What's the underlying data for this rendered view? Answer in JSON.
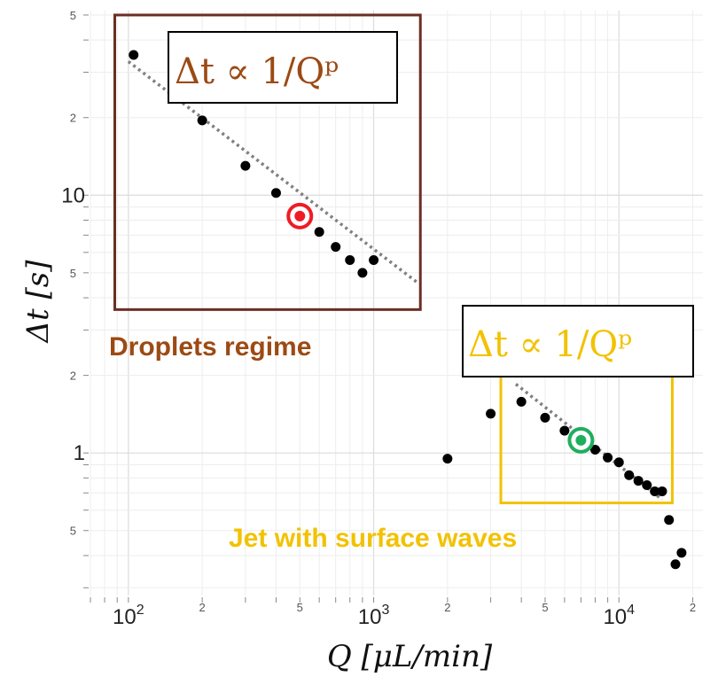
{
  "chart_data": {
    "type": "scatter",
    "xlabel": "Q [μL/min]",
    "ylabel": "Δt [s]",
    "x_scale": "log",
    "y_scale": "log",
    "xlim": [
      70,
      22000
    ],
    "ylim": [
      0.28,
      52
    ],
    "grid": true,
    "x_major_ticks": [
      {
        "value": 100,
        "base": "10",
        "exp": "2"
      },
      {
        "value": 1000,
        "base": "10",
        "exp": "3"
      },
      {
        "value": 10000,
        "base": "10",
        "exp": "4"
      }
    ],
    "x_minor_labels": [
      {
        "value": 200,
        "label": "2"
      },
      {
        "value": 500,
        "label": "5"
      },
      {
        "value": 2000,
        "label": "2"
      },
      {
        "value": 5000,
        "label": "5"
      },
      {
        "value": 20000,
        "label": "2"
      }
    ],
    "y_major_ticks": [
      {
        "value": 1,
        "label": "1"
      },
      {
        "value": 10,
        "label": "10"
      }
    ],
    "y_minor_labels": [
      {
        "value": 0.5,
        "label": "5"
      },
      {
        "value": 2,
        "label": "2"
      },
      {
        "value": 5,
        "label": "5"
      },
      {
        "value": 20,
        "label": "2"
      },
      {
        "value": 50,
        "label": "5"
      }
    ],
    "series": [
      {
        "x": [
          105,
          200,
          300,
          400,
          600,
          700,
          800,
          900,
          1000,
          2000,
          3000,
          4000,
          5000,
          6000,
          8000,
          9000,
          10000,
          11000,
          12000,
          13000,
          14000,
          15000,
          16000,
          17000,
          18000
        ],
        "y": [
          35,
          19.5,
          13,
          10.2,
          7.2,
          6.3,
          5.6,
          5.0,
          5.6,
          0.95,
          1.42,
          1.58,
          1.37,
          1.22,
          1.03,
          0.96,
          0.92,
          0.82,
          0.78,
          0.75,
          0.71,
          0.71,
          0.55,
          0.37,
          0.41
        ]
      }
    ],
    "fits": [
      {
        "x": [
          100,
          1500
        ],
        "y": [
          33,
          4.6
        ],
        "color": "#808080",
        "style": "dotted"
      },
      {
        "x": [
          3800,
          15000
        ],
        "y": [
          1.85,
          0.66
        ],
        "color": "#808080",
        "style": "dotted"
      }
    ],
    "highlighted_points": [
      {
        "x": 500,
        "y": 8.3,
        "color": "#ee1c25"
      },
      {
        "x": 7000,
        "y": 1.12,
        "color": "#1fae5e"
      }
    ],
    "regions": [
      {
        "name": "Droplets regime",
        "x": [
          88,
          1550
        ],
        "y": [
          3.6,
          50
        ],
        "color": "#6b2e22",
        "label_color": "#9c4a14",
        "law": "Δt ∝ 1/Qᵖ"
      },
      {
        "name": "Jet with surface waves",
        "x": [
          3300,
          16500
        ],
        "y": [
          0.64,
          2.25
        ],
        "color": "#f2c200",
        "label_color": "#f2c200",
        "law": "Δt ∝ 1/Qᵖ"
      }
    ]
  }
}
